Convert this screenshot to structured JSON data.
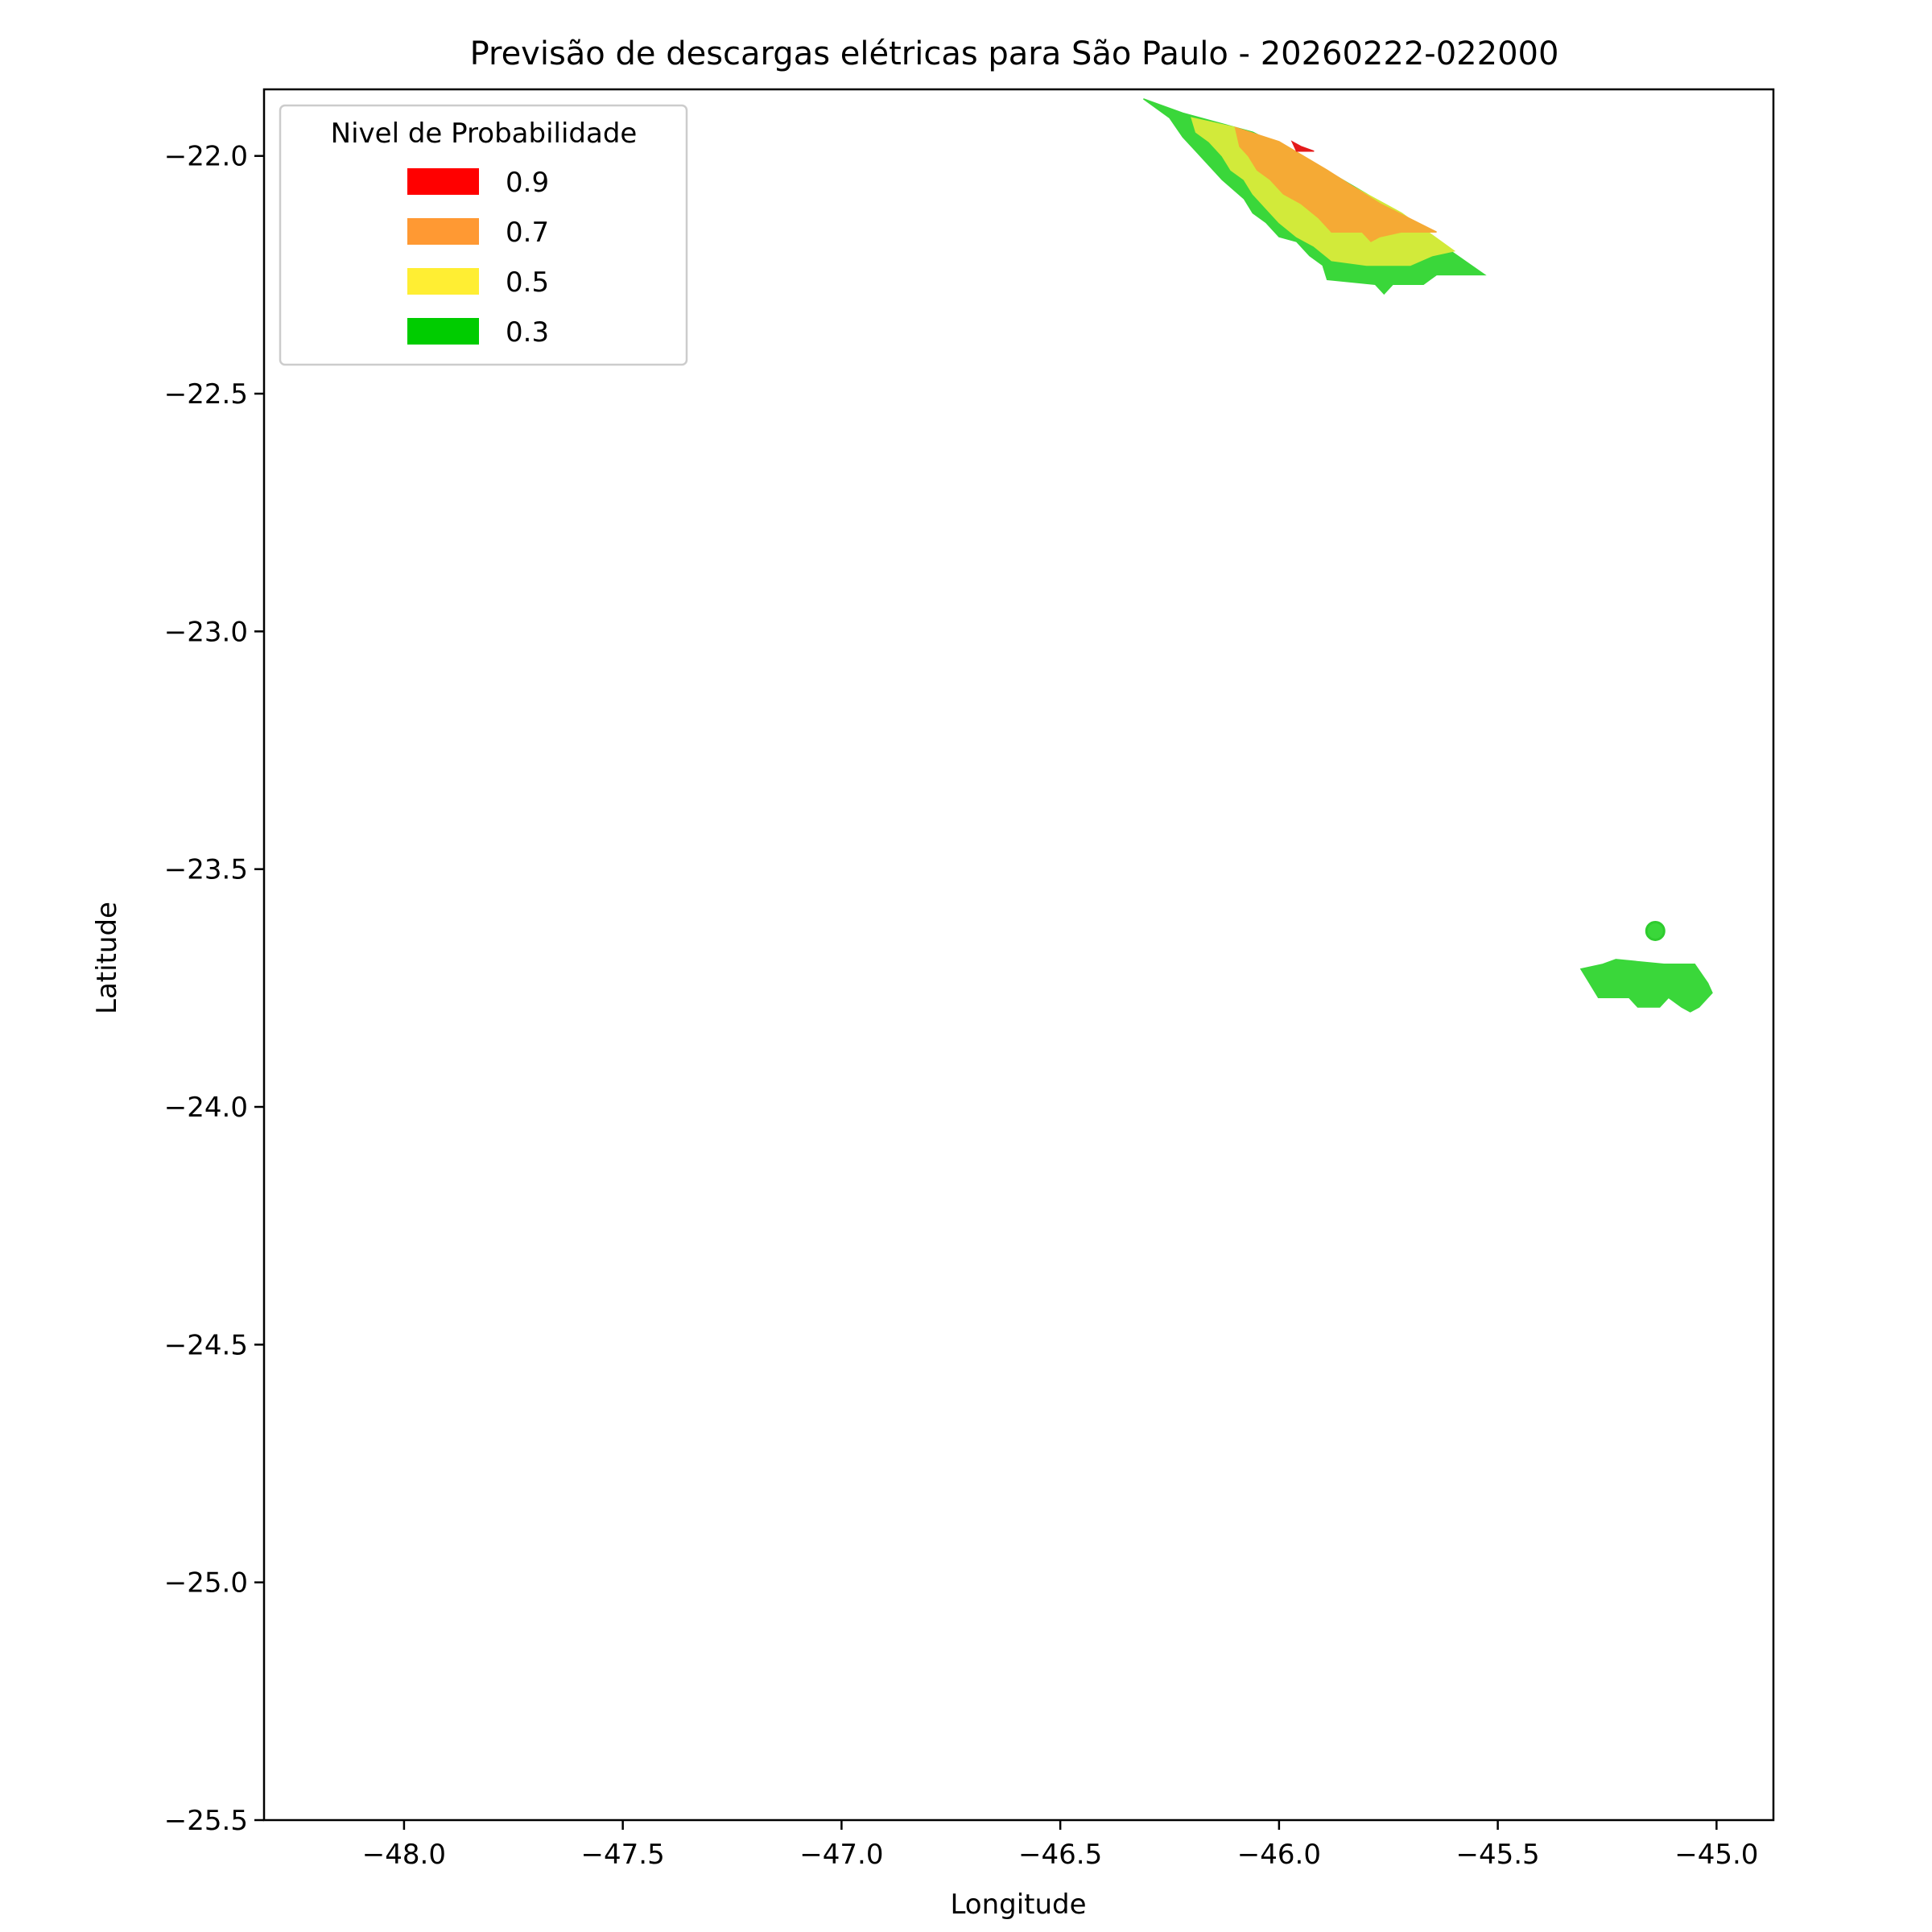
{
  "chart_data": {
    "type": "contour-map",
    "title": "Previsão de descargas elétricas para São Paulo - 20260222-022000",
    "xlabel": "Longitude",
    "ylabel": "Latitude",
    "xlim": [
      -48.32,
      -44.87
    ],
    "ylim": [
      -25.5,
      -21.86
    ],
    "x_ticks": [
      {
        "value": -48.0,
        "label": "−48.0"
      },
      {
        "value": -47.5,
        "label": "−47.5"
      },
      {
        "value": -47.0,
        "label": "−47.0"
      },
      {
        "value": -46.5,
        "label": "−46.5"
      },
      {
        "value": -46.0,
        "label": "−46.0"
      },
      {
        "value": -45.5,
        "label": "−45.5"
      },
      {
        "value": -45.0,
        "label": "−45.0"
      }
    ],
    "y_ticks": [
      {
        "value": -22.0,
        "label": "−22.0"
      },
      {
        "value": -22.5,
        "label": "−22.5"
      },
      {
        "value": -23.0,
        "label": "−23.0"
      },
      {
        "value": -23.5,
        "label": "−23.5"
      },
      {
        "value": -24.0,
        "label": "−24.0"
      },
      {
        "value": -24.5,
        "label": "−24.5"
      },
      {
        "value": -25.0,
        "label": "−25.0"
      },
      {
        "value": -25.5,
        "label": "−25.5"
      }
    ],
    "legend": {
      "title": "Nivel de Probabilidade",
      "position": "upper-left",
      "entries": [
        {
          "label": "0.9",
          "color": "#ff0000"
        },
        {
          "label": "0.7",
          "color": "#ff9933"
        },
        {
          "label": "0.5",
          "color": "#ffee33"
        },
        {
          "label": "0.3",
          "color": "#00cc00"
        }
      ]
    },
    "regions": [
      {
        "level": 0.3,
        "color": "#3ad73a",
        "points": [
          [
            -46.31,
            -21.88
          ],
          [
            -46.22,
            -21.91
          ],
          [
            -46.06,
            -21.95
          ],
          [
            -45.93,
            -22.01
          ],
          [
            -45.8,
            -22.08
          ],
          [
            -45.67,
            -22.16
          ],
          [
            -45.53,
            -22.25
          ],
          [
            -45.64,
            -22.25
          ],
          [
            -45.67,
            -22.27
          ],
          [
            -45.74,
            -22.27
          ],
          [
            -45.76,
            -22.29
          ],
          [
            -45.78,
            -22.27
          ],
          [
            -45.89,
            -22.26
          ],
          [
            -45.9,
            -22.23
          ],
          [
            -45.93,
            -22.21
          ],
          [
            -45.96,
            -22.18
          ],
          [
            -46.0,
            -22.17
          ],
          [
            -46.03,
            -22.14
          ],
          [
            -46.06,
            -22.12
          ],
          [
            -46.08,
            -22.09
          ],
          [
            -46.13,
            -22.05
          ],
          [
            -46.16,
            -22.02
          ],
          [
            -46.19,
            -21.99
          ],
          [
            -46.22,
            -21.96
          ],
          [
            -46.25,
            -21.92
          ]
        ]
      },
      {
        "level": 0.5,
        "color": "#d2ea3a",
        "points": [
          [
            -46.2,
            -21.92
          ],
          [
            -46.1,
            -21.94
          ],
          [
            -45.97,
            -21.99
          ],
          [
            -45.84,
            -22.06
          ],
          [
            -45.72,
            -22.12
          ],
          [
            -45.6,
            -22.2
          ],
          [
            -45.65,
            -22.21
          ],
          [
            -45.7,
            -22.23
          ],
          [
            -45.8,
            -22.23
          ],
          [
            -45.88,
            -22.22
          ],
          [
            -45.92,
            -22.19
          ],
          [
            -45.96,
            -22.17
          ],
          [
            -46.0,
            -22.14
          ],
          [
            -46.03,
            -22.11
          ],
          [
            -46.06,
            -22.08
          ],
          [
            -46.08,
            -22.05
          ],
          [
            -46.11,
            -22.03
          ],
          [
            -46.13,
            -22.0
          ],
          [
            -46.16,
            -21.97
          ],
          [
            -46.19,
            -21.95
          ]
        ]
      },
      {
        "level": 0.7,
        "color": "#f5aa35",
        "points": [
          [
            -46.1,
            -21.94
          ],
          [
            -46.0,
            -21.97
          ],
          [
            -45.89,
            -22.03
          ],
          [
            -45.77,
            -22.1
          ],
          [
            -45.64,
            -22.16
          ],
          [
            -45.72,
            -22.16
          ],
          [
            -45.77,
            -22.17
          ],
          [
            -45.79,
            -22.18
          ],
          [
            -45.81,
            -22.16
          ],
          [
            -45.88,
            -22.16
          ],
          [
            -45.91,
            -22.13
          ],
          [
            -45.95,
            -22.1
          ],
          [
            -45.99,
            -22.08
          ],
          [
            -46.02,
            -22.05
          ],
          [
            -46.05,
            -22.03
          ],
          [
            -46.07,
            -22.0
          ],
          [
            -46.09,
            -21.98
          ]
        ]
      },
      {
        "level": 0.9,
        "color": "#e41a1a",
        "points": [
          [
            -45.97,
            -21.97
          ],
          [
            -45.95,
            -21.98
          ],
          [
            -45.92,
            -21.99
          ],
          [
            -45.96,
            -21.99
          ]
        ]
      },
      {
        "level": 0.3,
        "color": "#3ad73a",
        "points": [
          [
            -45.31,
            -23.71
          ],
          [
            -45.26,
            -23.7
          ],
          [
            -45.23,
            -23.69
          ],
          [
            -45.12,
            -23.7
          ],
          [
            -45.05,
            -23.7
          ],
          [
            -45.02,
            -23.74
          ],
          [
            -45.01,
            -23.76
          ],
          [
            -45.04,
            -23.79
          ],
          [
            -45.06,
            -23.8
          ],
          [
            -45.08,
            -23.79
          ],
          [
            -45.11,
            -23.77
          ],
          [
            -45.13,
            -23.79
          ],
          [
            -45.18,
            -23.79
          ],
          [
            -45.2,
            -23.77
          ],
          [
            -45.27,
            -23.77
          ],
          [
            -45.29,
            -23.74
          ]
        ]
      }
    ],
    "points": [
      {
        "lon": -45.14,
        "lat": -23.63,
        "level": 0.3,
        "color": "#3ad73a"
      }
    ]
  }
}
